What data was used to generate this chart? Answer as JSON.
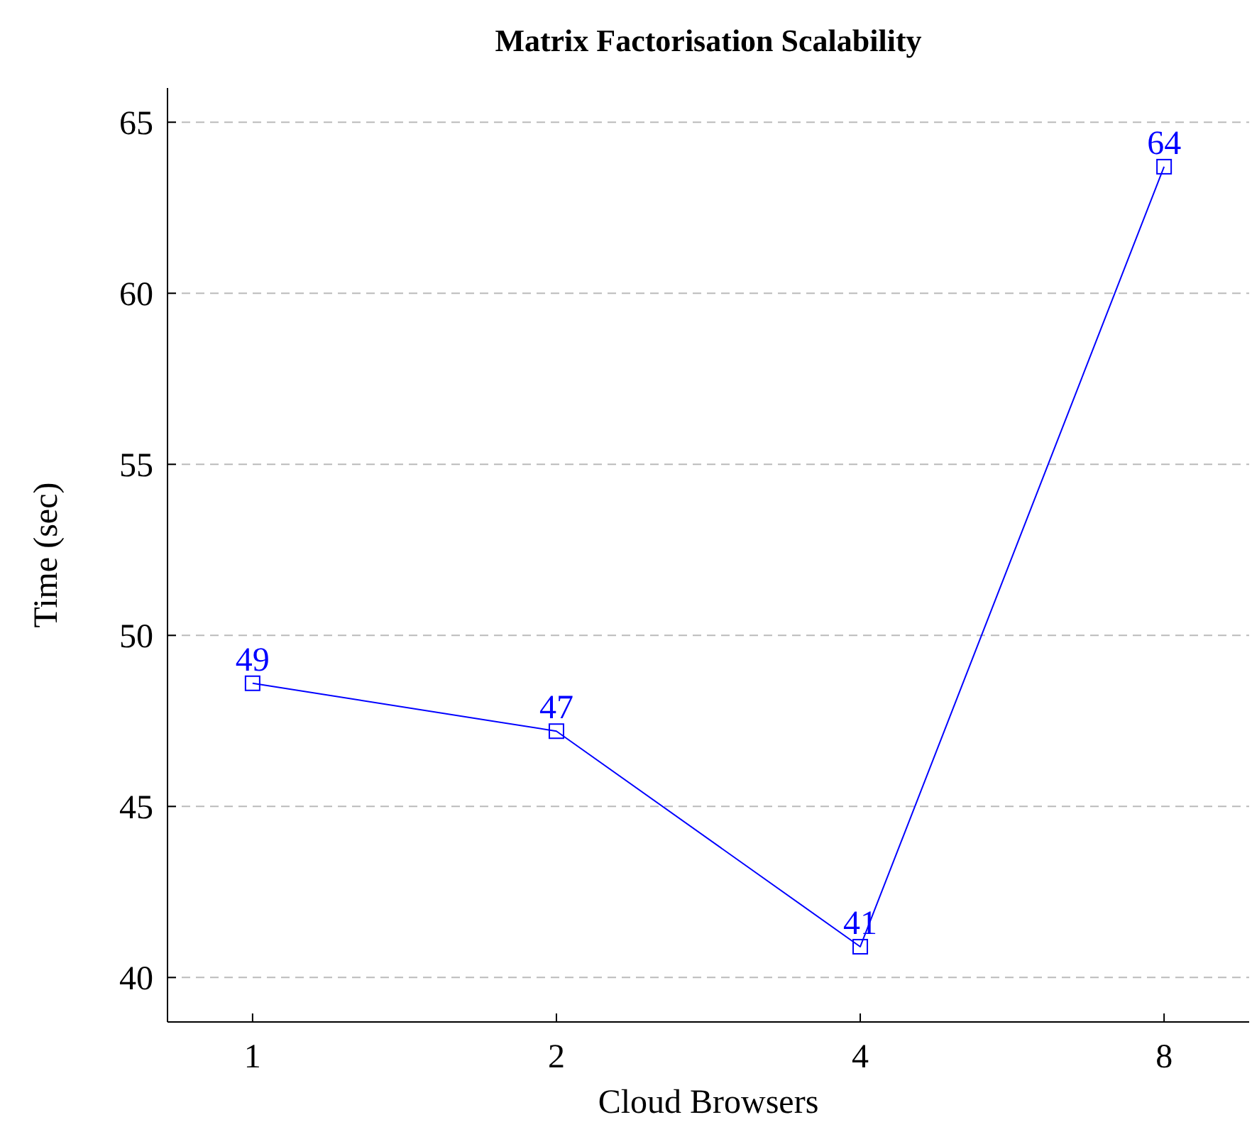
{
  "chart_data": {
    "type": "line",
    "title": "Matrix Factorisation Scalability",
    "xlabel": "Cloud Browsers",
    "ylabel": "Time (sec)",
    "categories": [
      "1",
      "2",
      "4",
      "8"
    ],
    "series": [
      {
        "color": "#0000ff",
        "values": [
          48.6,
          47.2,
          40.9,
          63.7
        ],
        "value_labels": [
          "49",
          "47",
          "41",
          "64"
        ]
      }
    ],
    "ylim": [
      38.7,
      66
    ],
    "yticks": [
      40,
      45,
      50,
      55,
      60,
      65
    ],
    "grid": "y",
    "marker": "square",
    "line_style": "solid"
  }
}
